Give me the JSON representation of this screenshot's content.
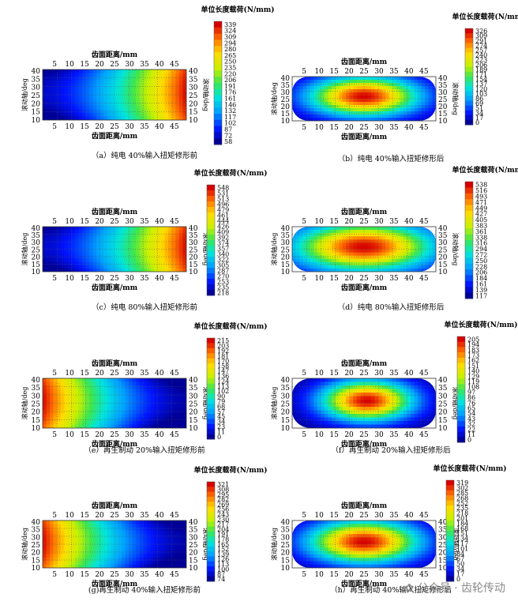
{
  "chart_data": [
    {
      "type": "heatmap",
      "panel": "a",
      "caption": "（a）纯电 40%输入扭矩修形前",
      "title": "单位长度载荷(N/mm)",
      "colorbar_ticks": [
        339,
        324,
        309,
        294,
        280,
        265,
        250,
        235,
        220,
        206,
        191,
        176,
        161,
        146,
        132,
        117,
        102,
        87,
        72,
        58
      ],
      "xlabel_top": "齿面距离/mm",
      "xlabel_bottom": "齿面距离/mm",
      "ylabel_left": "滚动轴/deg",
      "ylabel_right": "滚动轴/deg",
      "xticks": [
        5,
        10,
        15,
        20,
        25,
        30,
        35,
        40,
        45
      ],
      "yticks": [
        10,
        15,
        20,
        25,
        30,
        35,
        40
      ],
      "xlim": [
        1,
        49
      ],
      "ylim": [
        10,
        41
      ],
      "pattern": "before-right",
      "vmin": 58,
      "vmax": 339,
      "shape": "rect"
    },
    {
      "type": "heatmap",
      "panel": "b",
      "caption": "（b）纯电 40%输入扭矩修形后",
      "title": "单位长度载荷(N/mm)",
      "colorbar_ticks": [
        326,
        309,
        291,
        274,
        257,
        240,
        223,
        206,
        189,
        171,
        154,
        137,
        120,
        103,
        86,
        69,
        51,
        34,
        17,
        0
      ],
      "xlabel_top": "齿面距离/mm",
      "xlabel_bottom": "齿面距离/mm",
      "ylabel_left": "滚动轴/deg",
      "ylabel_right": "滚动轴/deg",
      "xticks": [
        5,
        10,
        15,
        20,
        25,
        30,
        35,
        40,
        45
      ],
      "yticks": [
        10,
        15,
        20,
        25,
        30,
        35,
        40
      ],
      "xlim": [
        1,
        49
      ],
      "ylim": [
        10,
        41
      ],
      "pattern": "after-center",
      "vmin": 0,
      "vmax": 326,
      "shape": "rounded"
    },
    {
      "type": "heatmap",
      "panel": "c",
      "caption": "（c）纯电 80%输入扭矩修形前",
      "title": "单位长度载荷(N/mm)",
      "colorbar_ticks": [
        548,
        531,
        513,
        496,
        479,
        461,
        444,
        426,
        409,
        392,
        374,
        357,
        340,
        322,
        305,
        287,
        270,
        253,
        235,
        218
      ],
      "xlabel_top": "齿面距离/mm",
      "xlabel_bottom": "齿面距离/mm",
      "ylabel_left": "滚动轴/deg",
      "ylabel_right": "滚动轴/deg",
      "xticks": [
        5,
        10,
        15,
        20,
        25,
        30,
        35,
        40,
        45
      ],
      "yticks": [
        10,
        15,
        20,
        25,
        30,
        35,
        40
      ],
      "xlim": [
        1,
        49
      ],
      "ylim": [
        10,
        41
      ],
      "pattern": "before-right",
      "vmin": 218,
      "vmax": 548,
      "shape": "rect"
    },
    {
      "type": "heatmap",
      "panel": "d",
      "caption": "（d）纯电 80%输入扭矩修形后",
      "title": "单位长度载荷(N/mm)",
      "colorbar_ticks": [
        538,
        516,
        493,
        471,
        449,
        427,
        405,
        383,
        361,
        338,
        316,
        294,
        272,
        250,
        228,
        206,
        184,
        161,
        139,
        117
      ],
      "xlabel_top": "齿面距离/mm",
      "xlabel_bottom": "齿面距离/mm",
      "ylabel_left": "滚动轴/deg",
      "ylabel_right": "滚动轴/deg",
      "xticks": [
        5,
        10,
        15,
        20,
        25,
        30,
        35,
        40,
        45
      ],
      "yticks": [
        10,
        15,
        20,
        25,
        30,
        35,
        40
      ],
      "xlim": [
        1,
        49
      ],
      "ylim": [
        10,
        41
      ],
      "pattern": "after-center-wide",
      "vmin": 117,
      "vmax": 538,
      "shape": "rounded"
    },
    {
      "type": "heatmap",
      "panel": "e",
      "caption": "（e）再生制动 20%输入扭矩修形前",
      "title": "单位长度载荷(N/mm)",
      "colorbar_ticks": [
        215,
        203,
        192,
        181,
        170,
        158,
        147,
        136,
        124,
        113,
        102,
        90,
        79,
        68,
        57,
        45,
        34,
        23,
        11,
        0
      ],
      "xlabel_top": "齿面距离/mm",
      "xlabel_bottom": "齿面距离/mm",
      "ylabel_left": "滚动轴/deg",
      "ylabel_right": "滚动轴/deg",
      "xticks": [
        5,
        10,
        15,
        20,
        25,
        30,
        35,
        40,
        45
      ],
      "yticks": [
        10,
        15,
        20,
        25,
        30,
        35,
        40
      ],
      "xlim": [
        1,
        49
      ],
      "ylim": [
        10,
        41
      ],
      "pattern": "before-left",
      "vmin": 0,
      "vmax": 215,
      "shape": "rect"
    },
    {
      "type": "heatmap",
      "panel": "f",
      "caption": "（f）再生制动 20%输入扭矩修形后",
      "title": "单位长度载荷(N/mm)",
      "colorbar_ticks": [
        205,
        194,
        183,
        173,
        162,
        151,
        140,
        129,
        119,
        108,
        97,
        86,
        76,
        65,
        54,
        43,
        32,
        22,
        11,
        0
      ],
      "xlabel_top": "齿面距离/mm",
      "xlabel_bottom": "齿面距离/mm",
      "ylabel_left": "滚动轴/deg",
      "ylabel_right": "滚动轴/deg",
      "xticks": [
        5,
        10,
        15,
        20,
        25,
        30,
        35,
        40,
        45
      ],
      "yticks": [
        10,
        15,
        20,
        25,
        30,
        35,
        40
      ],
      "xlim": [
        1,
        49
      ],
      "ylim": [
        10,
        41
      ],
      "pattern": "after-center-narrow",
      "vmin": 0,
      "vmax": 205,
      "shape": "rounded"
    },
    {
      "type": "heatmap",
      "panel": "g",
      "caption": "(g)再生制动 40%输入扭矩修形前",
      "title": "单位长度载荷(N/mm)",
      "colorbar_ticks": [
        321,
        308,
        295,
        282,
        269,
        256,
        243,
        230,
        217,
        204,
        191,
        178,
        165,
        152,
        139,
        126,
        113,
        100,
        87,
        74
      ],
      "xlabel_top": "齿面距离/mm",
      "xlabel_bottom": "齿面距离/mm",
      "ylabel_left": "滚动轴/deg",
      "ylabel_right": "滚动轴/deg",
      "xticks": [
        5,
        10,
        15,
        20,
        25,
        30,
        35,
        40,
        45
      ],
      "yticks": [
        10,
        15,
        20,
        25,
        30,
        35,
        40
      ],
      "xlim": [
        1,
        49
      ],
      "ylim": [
        10,
        41
      ],
      "pattern": "before-left",
      "vmin": 74,
      "vmax": 321,
      "shape": "rect"
    },
    {
      "type": "heatmap",
      "panel": "h",
      "caption": "（h）再生制动 40%输入扭矩修形后",
      "title": "单位长度载荷(N/mm)",
      "colorbar_ticks": [
        319,
        302,
        285,
        268,
        252,
        235,
        218,
        201,
        184,
        168,
        151,
        134,
        117,
        101,
        84,
        67,
        50,
        34,
        17,
        0
      ],
      "xlabel_top": "齿面距离/mm",
      "xlabel_bottom": "齿面距离/mm",
      "ylabel_left": "滚动轴/deg",
      "ylabel_right": "滚动轴/deg",
      "xticks": [
        5,
        10,
        15,
        20,
        25,
        30,
        35,
        40,
        45
      ],
      "yticks": [
        10,
        15,
        20,
        25,
        30,
        35,
        40
      ],
      "xlim": [
        1,
        49
      ],
      "ylim": [
        10,
        41
      ],
      "pattern": "after-center",
      "vmin": 0,
      "vmax": 319,
      "shape": "rounded"
    }
  ],
  "watermark": "公众号 · 齿轮传动"
}
